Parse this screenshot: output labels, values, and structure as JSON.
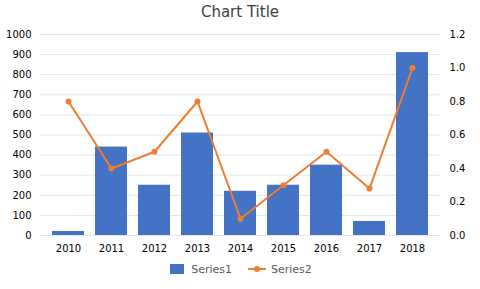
{
  "chart_data": {
    "type": "bar",
    "title": "Chart Title",
    "categories": [
      "2010",
      "2011",
      "2012",
      "2013",
      "2014",
      "2015",
      "2016",
      "2017",
      "2018"
    ],
    "series": [
      {
        "name": "Series1",
        "type": "bar",
        "color": "#4472C4",
        "values": [
          20,
          440,
          250,
          510,
          220,
          250,
          350,
          70,
          910
        ]
      },
      {
        "name": "Series2",
        "type": "line",
        "color": "#ED7D31",
        "marker": "circle",
        "axis": "y2",
        "values": [
          0.8,
          0.4,
          0.5,
          0.8,
          0.1,
          0.3,
          0.5,
          0.28,
          1.0
        ]
      }
    ],
    "ylim": [
      0,
      1000
    ],
    "yticks": [
      0,
      100,
      200,
      300,
      400,
      500,
      600,
      700,
      800,
      900,
      1000
    ],
    "y2lim": [
      0,
      1.2
    ],
    "y2ticks": [
      {
        "value": 0,
        "label": "0.0"
      },
      0.2,
      0.4,
      0.6,
      0.8,
      {
        "value": 1,
        "label": "1.0"
      },
      1.2
    ],
    "grid": true,
    "legend": "bottom"
  }
}
